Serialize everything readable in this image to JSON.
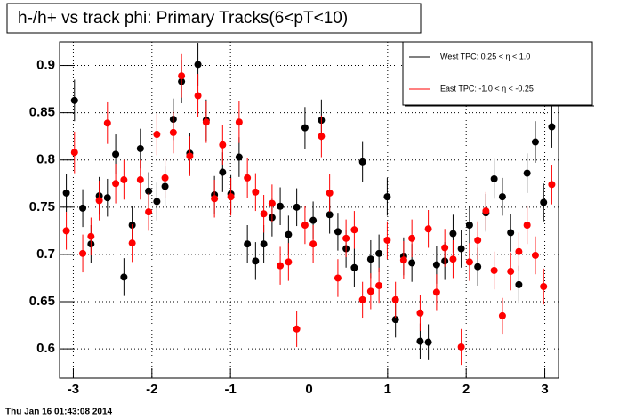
{
  "chart_data": {
    "type": "scatter",
    "title": "h-/h+ vs track phi: Primary Tracks(6<pT<10)",
    "footer": "Thu Jan 16 01:43:08 2014",
    "x": [
      -3.089,
      -2.985,
      -2.88,
      -2.775,
      -2.67,
      -2.566,
      -2.461,
      -2.356,
      -2.251,
      -2.147,
      -2.042,
      -1.937,
      -1.833,
      -1.728,
      -1.623,
      -1.518,
      -1.414,
      -1.309,
      -1.204,
      -1.1,
      -0.995,
      -0.89,
      -0.785,
      -0.681,
      -0.576,
      -0.471,
      -0.367,
      -0.262,
      -0.157,
      -0.052,
      0.052,
      0.157,
      0.262,
      0.367,
      0.471,
      0.576,
      0.681,
      0.785,
      0.89,
      0.995,
      1.1,
      1.204,
      1.309,
      1.414,
      1.518,
      1.623,
      1.728,
      1.833,
      1.937,
      2.042,
      2.147,
      2.251,
      2.356,
      2.461,
      2.566,
      2.67,
      2.775,
      2.88,
      2.985,
      3.089
    ],
    "series": [
      {
        "name": "West TPC: 0.25 < η < 1.0",
        "color": "#000000",
        "values": [
          0.765,
          0.863,
          0.749,
          0.711,
          0.762,
          0.76,
          0.806,
          0.676,
          0.731,
          0.812,
          0.767,
          0.756,
          0.772,
          0.843,
          0.883,
          0.807,
          0.901,
          0.842,
          0.763,
          0.787,
          0.764,
          0.803,
          0.711,
          0.693,
          0.711,
          0.739,
          0.751,
          0.721,
          0.75,
          0.834,
          0.736,
          0.842,
          0.742,
          0.724,
          0.706,
          0.686,
          0.798,
          0.695,
          0.701,
          0.761,
          0.631,
          0.698,
          0.691,
          0.608,
          0.607,
          0.689,
          0.693,
          0.722,
          0.706,
          0.731,
          0.687,
          0.744,
          0.78,
          0.761,
          0.723,
          0.668,
          0.786,
          0.819,
          0.755,
          0.835
        ],
        "errors": [
          0.02,
          0.022,
          0.02,
          0.02,
          0.02,
          0.02,
          0.021,
          0.02,
          0.02,
          0.021,
          0.02,
          0.02,
          0.021,
          0.022,
          0.023,
          0.021,
          0.023,
          0.022,
          0.02,
          0.021,
          0.02,
          0.021,
          0.02,
          0.02,
          0.02,
          0.02,
          0.02,
          0.02,
          0.02,
          0.022,
          0.02,
          0.022,
          0.02,
          0.02,
          0.02,
          0.02,
          0.021,
          0.02,
          0.02,
          0.02,
          0.019,
          0.02,
          0.02,
          0.019,
          0.019,
          0.02,
          0.02,
          0.02,
          0.02,
          0.02,
          0.02,
          0.02,
          0.021,
          0.02,
          0.02,
          0.02,
          0.021,
          0.022,
          0.02,
          0.022
        ]
      },
      {
        "name": "East TPC: -1.0 < η < -0.25",
        "color": "#ff0000",
        "values": [
          0.725,
          0.808,
          0.701,
          0.719,
          0.757,
          0.839,
          0.775,
          0.779,
          0.712,
          0.779,
          0.745,
          0.827,
          0.781,
          0.829,
          0.889,
          0.804,
          0.868,
          0.84,
          0.759,
          0.816,
          0.761,
          0.84,
          0.781,
          0.766,
          0.743,
          0.754,
          0.688,
          0.692,
          0.621,
          0.731,
          0.711,
          0.825,
          0.765,
          0.675,
          0.717,
          0.726,
          0.652,
          0.661,
          0.667,
          0.715,
          0.652,
          0.694,
          0.717,
          0.638,
          0.727,
          0.66,
          0.707,
          0.695,
          0.602,
          0.692,
          0.715,
          0.746,
          0.683,
          0.635,
          0.682,
          0.703,
          0.731,
          0.699,
          0.666,
          0.774
        ],
        "errors": [
          0.02,
          0.022,
          0.02,
          0.02,
          0.021,
          0.022,
          0.021,
          0.021,
          0.02,
          0.021,
          0.02,
          0.022,
          0.021,
          0.022,
          0.023,
          0.021,
          0.023,
          0.022,
          0.02,
          0.021,
          0.02,
          0.022,
          0.021,
          0.02,
          0.02,
          0.02,
          0.02,
          0.02,
          0.019,
          0.02,
          0.02,
          0.022,
          0.02,
          0.02,
          0.02,
          0.02,
          0.019,
          0.019,
          0.019,
          0.02,
          0.019,
          0.02,
          0.02,
          0.019,
          0.02,
          0.019,
          0.02,
          0.02,
          0.019,
          0.02,
          0.02,
          0.02,
          0.02,
          0.019,
          0.02,
          0.02,
          0.02,
          0.02,
          0.019,
          0.021
        ]
      }
    ],
    "xlim": [
      -3.175,
      3.175
    ],
    "xticks": [
      -3,
      -2,
      -1,
      0,
      1,
      2,
      3
    ],
    "ylim": [
      0.569,
      0.925
    ],
    "yticks": [
      0.6,
      0.65,
      0.7,
      0.75,
      0.8,
      0.85,
      0.9
    ],
    "grid": true,
    "legend": "top-right"
  }
}
